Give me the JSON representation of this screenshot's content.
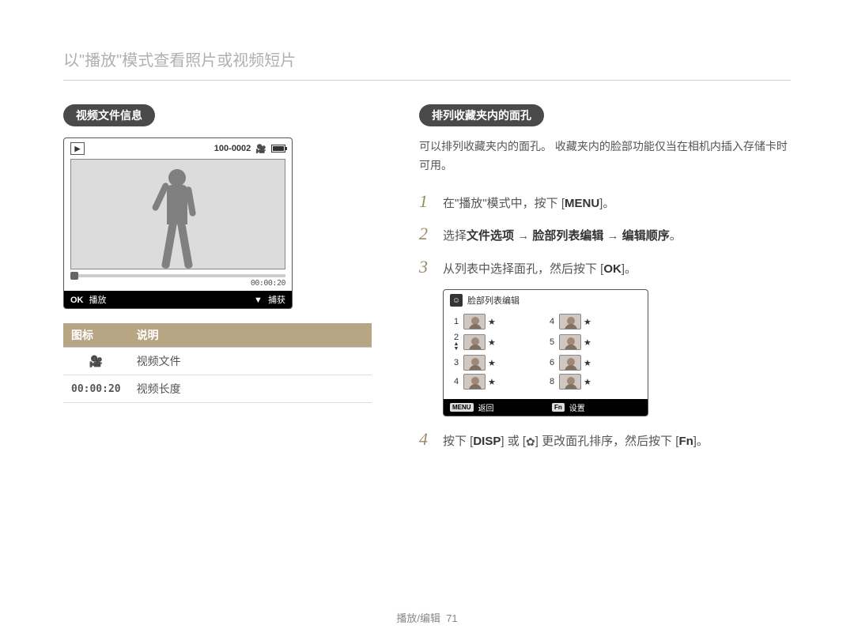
{
  "header": "以\"播放\"模式查看照片或视频短片",
  "left": {
    "section_title": "视频文件信息",
    "preview": {
      "file_counter": "100-0002",
      "time": "00:00:20",
      "ok_label": "OK",
      "play_label": "播放",
      "capture_icon": "▼",
      "capture_label": "捕获"
    },
    "table": {
      "header_icon": "图标",
      "header_desc": "说明",
      "rows": [
        {
          "icon": "cam",
          "icon_text": "🎥",
          "desc": "视频文件"
        },
        {
          "icon": "text",
          "icon_text": "00:00:20",
          "desc": "视频长度"
        }
      ]
    }
  },
  "right": {
    "section_title": "排列收藏夹内的面孔",
    "intro": "可以排列收藏夹内的面孔。 收藏夹内的脸部功能仅当在相机内插入存储卡时可用。",
    "steps": [
      {
        "n": "1",
        "html": "在\"播放\"模式中，按下 [<span class='keycap'>MENU</span>]。"
      },
      {
        "n": "2",
        "html": "选择<strong>文件选项</strong> → <strong>脸部列表编辑</strong> → <strong>编辑顺序</strong>。"
      },
      {
        "n": "3",
        "html": "从列表中选择面孔，然后按下 [<span class='keycap'>OK</span>]。"
      },
      {
        "n": "4",
        "html": "按下 [<span class='keycap'>DISP</span>] 或 [<span class='flower-icon'>✿</span>] 更改面孔排序，然后按下 [<span class='keycap'>Fn</span>]。"
      }
    ],
    "face_panel": {
      "title": "脸部列表编辑",
      "menu_key": "MENU",
      "back_label": "返回",
      "fn_key": "Fn",
      "set_label": "设置",
      "left_numbers": [
        "1",
        "2",
        "3",
        "4"
      ],
      "right_numbers": [
        "4",
        "5",
        "6",
        "8"
      ]
    }
  },
  "footer": {
    "section": "播放/编辑",
    "page": "71"
  }
}
